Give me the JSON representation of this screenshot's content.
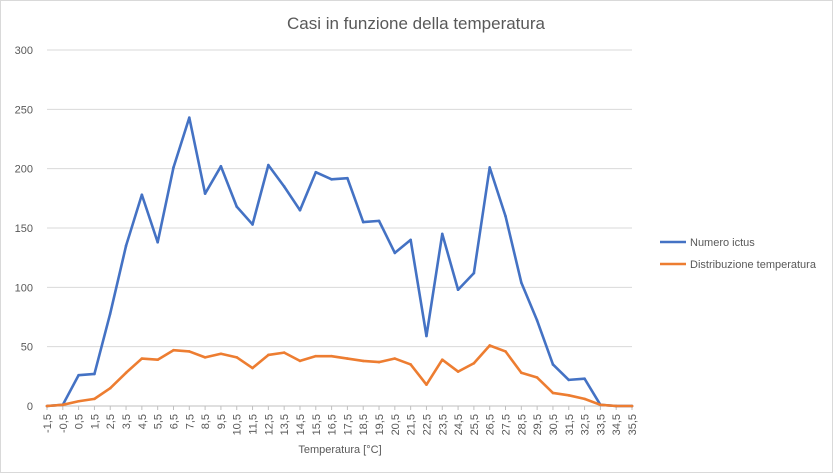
{
  "chart_data": {
    "type": "line",
    "title": "Casi in funzione della temperatura",
    "xlabel": "Temperatura [°C]",
    "ylabel": "",
    "ylim": [
      0,
      300
    ],
    "yticks": [
      "0",
      "50",
      "100",
      "150",
      "200",
      "250",
      "300"
    ],
    "grid": "horizontal",
    "legend_position": "right",
    "categories": [
      "-1,5",
      "-0,5",
      "0,5",
      "1,5",
      "2,5",
      "3,5",
      "4,5",
      "5,5",
      "6,5",
      "7,5",
      "8,5",
      "9,5",
      "10,5",
      "11,5",
      "12,5",
      "13,5",
      "14,5",
      "15,5",
      "16,5",
      "17,5",
      "18,5",
      "19,5",
      "20,5",
      "21,5",
      "22,5",
      "23,5",
      "24,5",
      "25,5",
      "26,5",
      "27,5",
      "28,5",
      "29,5",
      "30,5",
      "31,5",
      "32,5",
      "33,5",
      "34,5",
      "35,5"
    ],
    "series": [
      {
        "name": "Numero ictus",
        "color": "#4472C4",
        "values": [
          0,
          1,
          26,
          27,
          78,
          135,
          178,
          138,
          201,
          243,
          179,
          202,
          168,
          153,
          203,
          185,
          165,
          197,
          191,
          192,
          155,
          156,
          129,
          140,
          59,
          145,
          98,
          112,
          201,
          160,
          104,
          72,
          35,
          22,
          23,
          1,
          0,
          0
        ]
      },
      {
        "name": "Distribuzione temperatura",
        "color": "#ED7D31",
        "values": [
          0,
          1,
          4,
          6,
          15,
          28,
          40,
          39,
          47,
          46,
          41,
          44,
          41,
          32,
          43,
          45,
          38,
          42,
          42,
          40,
          38,
          37,
          40,
          35,
          18,
          39,
          29,
          36,
          51,
          46,
          28,
          24,
          11,
          9,
          6,
          1,
          0,
          0
        ]
      }
    ]
  }
}
